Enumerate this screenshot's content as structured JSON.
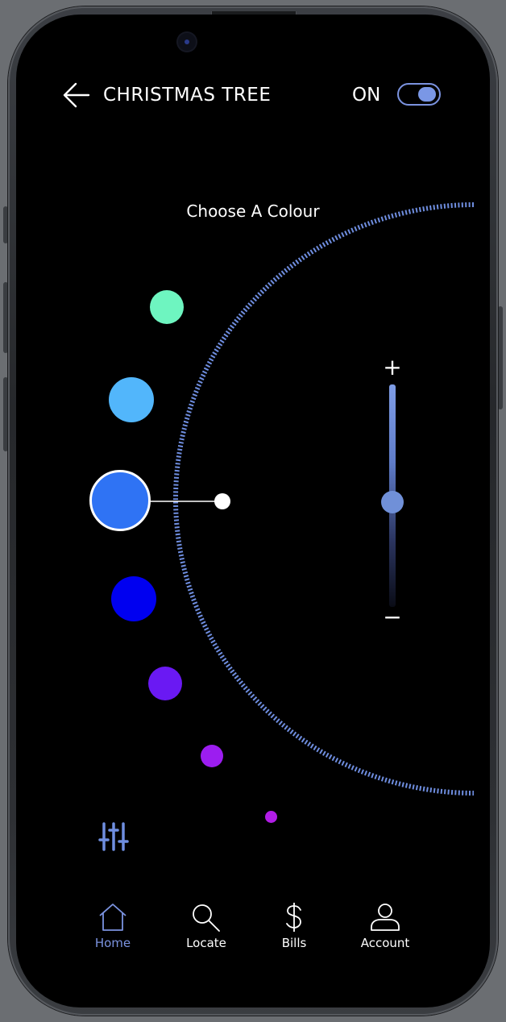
{
  "header": {
    "title": "CHRISTMAS TREE",
    "power_label": "ON",
    "power_on": true
  },
  "color_picker": {
    "label": "Choose A Colour",
    "selected_index": 2,
    "swatches": [
      {
        "name": "mint",
        "color": "#6ef5c0"
      },
      {
        "name": "sky-blue",
        "color": "#52b6fb"
      },
      {
        "name": "blue",
        "color": "#2f73f4"
      },
      {
        "name": "deep-blue",
        "color": "#0000f0"
      },
      {
        "name": "violet",
        "color": "#6a19f3"
      },
      {
        "name": "purple",
        "color": "#9c1df0"
      },
      {
        "name": "magenta",
        "color": "#b11de6"
      }
    ]
  },
  "brightness": {
    "plus_label": "+",
    "minus_label": "−",
    "level": 0.47
  },
  "icons": {
    "back": "arrow-left-icon",
    "filter": "sliders-icon"
  },
  "nav": {
    "items": [
      {
        "label": "Home",
        "icon": "home-icon",
        "active": true
      },
      {
        "label": "Locate",
        "icon": "search-icon",
        "active": false
      },
      {
        "label": "Bills",
        "icon": "dollar-icon",
        "active": false
      },
      {
        "label": "Account",
        "icon": "user-icon",
        "active": false
      }
    ]
  },
  "colors": {
    "accent": "#7b93e0",
    "background": "#000000",
    "text": "#ffffff"
  }
}
